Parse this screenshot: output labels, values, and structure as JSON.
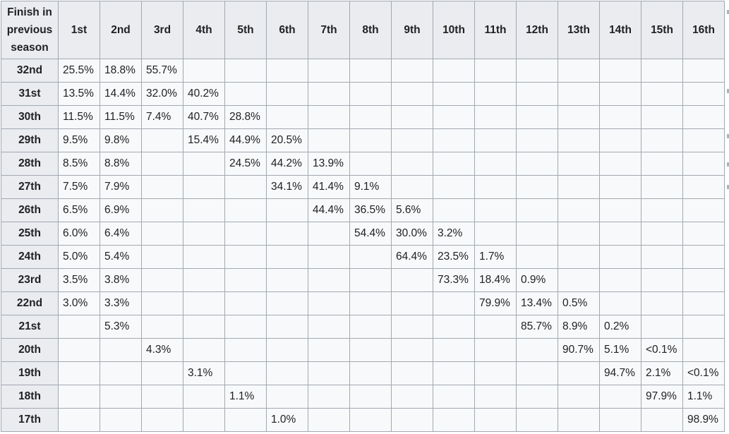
{
  "table": {
    "corner_header": [
      "Finish in",
      "previous",
      "season"
    ],
    "columns": [
      "1st",
      "2nd",
      "3rd",
      "4th",
      "5th",
      "6th",
      "7th",
      "8th",
      "9th",
      "10th",
      "11th",
      "12th",
      "13th",
      "14th",
      "15th",
      "16th"
    ],
    "rows": [
      {
        "label": "32nd",
        "cells": [
          "25.5%",
          "18.8%",
          "55.7%",
          "",
          "",
          "",
          "",
          "",
          "",
          "",
          "",
          "",
          "",
          "",
          "",
          ""
        ]
      },
      {
        "label": "31st",
        "cells": [
          "13.5%",
          "14.4%",
          "32.0%",
          "40.2%",
          "",
          "",
          "",
          "",
          "",
          "",
          "",
          "",
          "",
          "",
          "",
          ""
        ]
      },
      {
        "label": "30th",
        "cells": [
          "11.5%",
          "11.5%",
          "7.4%",
          "40.7%",
          "28.8%",
          "",
          "",
          "",
          "",
          "",
          "",
          "",
          "",
          "",
          "",
          ""
        ]
      },
      {
        "label": "29th",
        "cells": [
          "9.5%",
          "9.8%",
          "",
          "15.4%",
          "44.9%",
          "20.5%",
          "",
          "",
          "",
          "",
          "",
          "",
          "",
          "",
          "",
          ""
        ]
      },
      {
        "label": "28th",
        "cells": [
          "8.5%",
          "8.8%",
          "",
          "",
          "24.5%",
          "44.2%",
          "13.9%",
          "",
          "",
          "",
          "",
          "",
          "",
          "",
          "",
          ""
        ]
      },
      {
        "label": "27th",
        "cells": [
          "7.5%",
          "7.9%",
          "",
          "",
          "",
          "34.1%",
          "41.4%",
          "9.1%",
          "",
          "",
          "",
          "",
          "",
          "",
          "",
          ""
        ]
      },
      {
        "label": "26th",
        "cells": [
          "6.5%",
          "6.9%",
          "",
          "",
          "",
          "",
          "44.4%",
          "36.5%",
          "5.6%",
          "",
          "",
          "",
          "",
          "",
          "",
          ""
        ]
      },
      {
        "label": "25th",
        "cells": [
          "6.0%",
          "6.4%",
          "",
          "",
          "",
          "",
          "",
          "54.4%",
          "30.0%",
          "3.2%",
          "",
          "",
          "",
          "",
          "",
          ""
        ]
      },
      {
        "label": "24th",
        "cells": [
          "5.0%",
          "5.4%",
          "",
          "",
          "",
          "",
          "",
          "",
          "64.4%",
          "23.5%",
          "1.7%",
          "",
          "",
          "",
          "",
          ""
        ]
      },
      {
        "label": "23rd",
        "cells": [
          "3.5%",
          "3.8%",
          "",
          "",
          "",
          "",
          "",
          "",
          "",
          "73.3%",
          "18.4%",
          "0.9%",
          "",
          "",
          "",
          ""
        ]
      },
      {
        "label": "22nd",
        "cells": [
          "3.0%",
          "3.3%",
          "",
          "",
          "",
          "",
          "",
          "",
          "",
          "",
          "79.9%",
          "13.4%",
          "0.5%",
          "",
          "",
          ""
        ]
      },
      {
        "label": "21st",
        "cells": [
          "",
          "5.3%",
          "",
          "",
          "",
          "",
          "",
          "",
          "",
          "",
          "",
          "85.7%",
          "8.9%",
          "0.2%",
          "",
          ""
        ]
      },
      {
        "label": "20th",
        "cells": [
          "",
          "",
          "4.3%",
          "",
          "",
          "",
          "",
          "",
          "",
          "",
          "",
          "",
          "90.7%",
          "5.1%",
          "<0.1%",
          ""
        ]
      },
      {
        "label": "19th",
        "cells": [
          "",
          "",
          "",
          "3.1%",
          "",
          "",
          "",
          "",
          "",
          "",
          "",
          "",
          "",
          "94.7%",
          "2.1%",
          "<0.1%"
        ]
      },
      {
        "label": "18th",
        "cells": [
          "",
          "",
          "",
          "",
          "1.1%",
          "",
          "",
          "",
          "",
          "",
          "",
          "",
          "",
          "",
          "97.9%",
          "1.1%"
        ]
      },
      {
        "label": "17th",
        "cells": [
          "",
          "",
          "",
          "",
          "",
          "1.0%",
          "",
          "",
          "",
          "",
          "",
          "",
          "",
          "",
          "",
          "98.9%"
        ]
      }
    ]
  }
}
